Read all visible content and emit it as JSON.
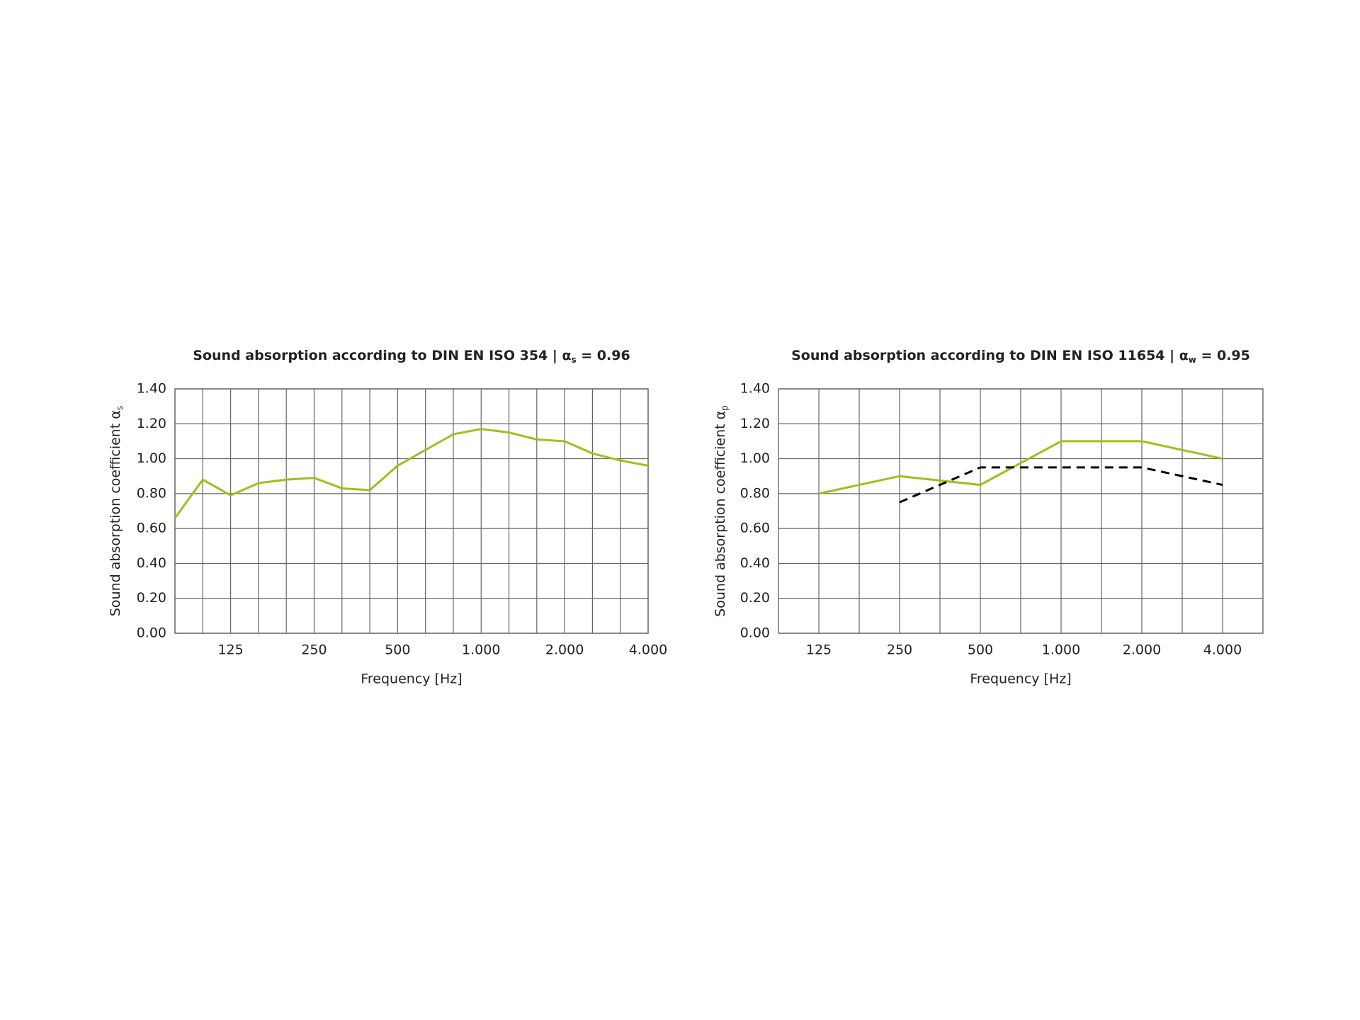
{
  "chart_data": [
    {
      "type": "line",
      "title": "Sound absorption according to DIN EN ISO 354 | ",
      "title_symbol": "α",
      "title_subscript": "s",
      "title_value": " = 0.96",
      "ylabel": "Sound absorption coefficient ",
      "ylabel_symbol": "α",
      "ylabel_subscript": "s",
      "xlabel": "Frequency [Hz]",
      "categories": [
        null,
        null,
        "125",
        null,
        null,
        "250",
        null,
        null,
        "500",
        null,
        null,
        "1.000",
        null,
        null,
        "2.000",
        null,
        null,
        "4.000"
      ],
      "series": [
        {
          "color": "#9dc01c",
          "dashed": false,
          "values": [
            0.66,
            0.88,
            0.79,
            0.86,
            0.88,
            0.89,
            0.83,
            0.82,
            0.96,
            1.05,
            1.14,
            1.17,
            1.15,
            1.11,
            1.1,
            1.03,
            0.99,
            0.96
          ]
        }
      ],
      "ylim": [
        0,
        1.4
      ],
      "yticks": [
        {
          "value": 0,
          "label": "0.00"
        },
        {
          "value": 0.2,
          "label": "0.20"
        },
        {
          "value": 0.4,
          "label": "0.40"
        },
        {
          "value": 0.6,
          "label": "0.60"
        },
        {
          "value": 0.8,
          "label": "0.80"
        },
        {
          "value": 1.0,
          "label": "1.00"
        },
        {
          "value": 1.2,
          "label": "1.20"
        },
        {
          "value": 1.4,
          "label": "1.40"
        }
      ],
      "grid": true
    },
    {
      "type": "line",
      "title": "Sound absorption according to DIN EN ISO 11654 | ",
      "title_symbol": "α",
      "title_subscript": "w",
      "title_value": " = 0.95",
      "ylabel": "Sound absorption coefficient ",
      "ylabel_symbol": "α",
      "ylabel_subscript": "p",
      "xlabel": "Frequency [Hz]",
      "categories": [
        "125",
        "250",
        "500",
        "1.000",
        "2.000",
        "4.000"
      ],
      "series": [
        {
          "color": "#9dc01c",
          "dashed": false,
          "values": [
            0.8,
            0.9,
            0.85,
            1.1,
            1.1,
            1.0
          ]
        },
        {
          "color": "#000000",
          "dashed": true,
          "values": [
            null,
            0.75,
            0.95,
            0.95,
            0.95,
            0.85
          ]
        }
      ],
      "ylim": [
        0,
        1.4
      ],
      "yticks": [
        {
          "value": 0,
          "label": "0.00"
        },
        {
          "value": 0.2,
          "label": "0.20"
        },
        {
          "value": 0.4,
          "label": "0.40"
        },
        {
          "value": 0.6,
          "label": "0.60"
        },
        {
          "value": 0.8,
          "label": "0.80"
        },
        {
          "value": 1.0,
          "label": "1.00"
        },
        {
          "value": 1.2,
          "label": "1.20"
        },
        {
          "value": 1.4,
          "label": "1.40"
        }
      ],
      "grid": true
    }
  ]
}
